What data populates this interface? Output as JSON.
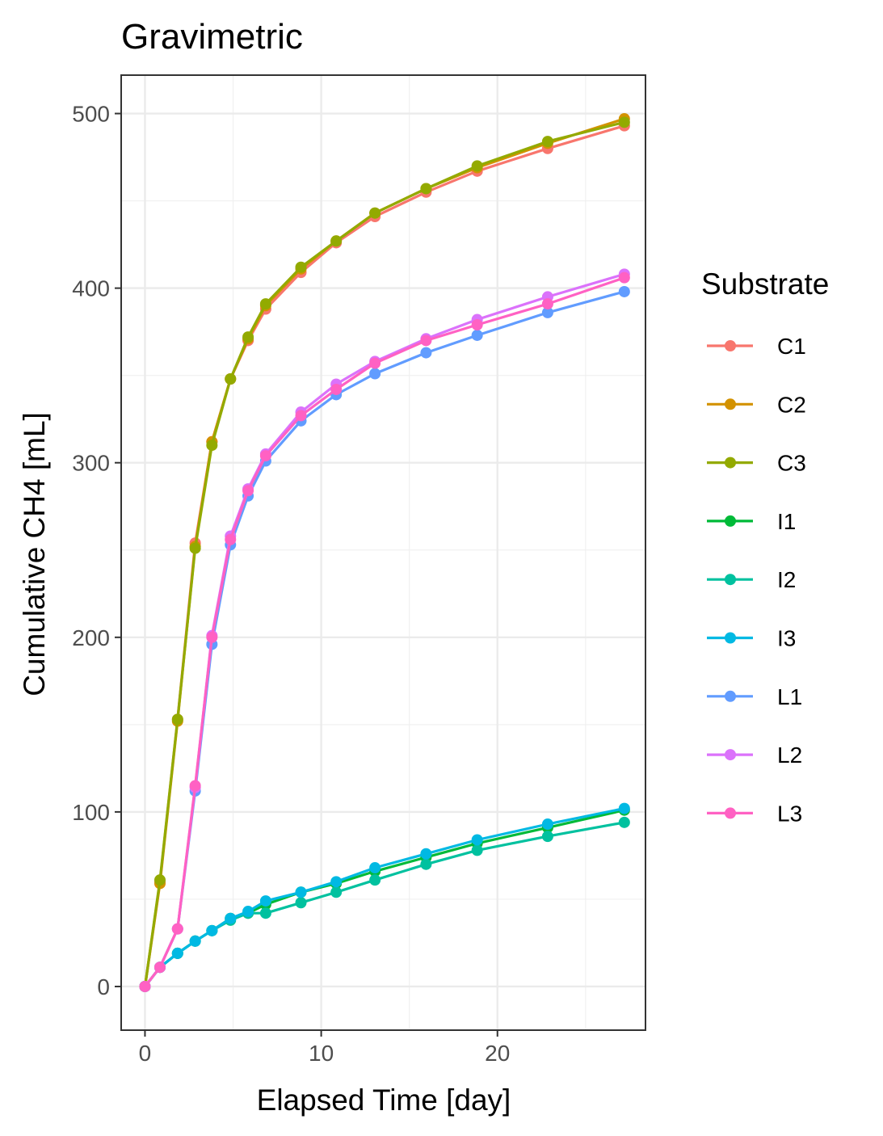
{
  "chart_data": {
    "type": "line",
    "title": "Gravimetric",
    "xlabel": "Elapsed Time [day]",
    "ylabel": "Cumulative CH4 [mL]",
    "xlim": [
      -1.35,
      28.4
    ],
    "ylim": [
      -25,
      522
    ],
    "x_ticks": [
      0,
      10,
      20
    ],
    "y_ticks": [
      0,
      100,
      200,
      300,
      400,
      500
    ],
    "x_minor_ticks": [
      5,
      15,
      25
    ],
    "y_minor_ticks": [
      50,
      150,
      250,
      350,
      450
    ],
    "grid": true,
    "legend": {
      "title": "Substrate",
      "position": "right"
    },
    "x": [
      0,
      0.85,
      1.85,
      2.85,
      3.8,
      4.85,
      5.85,
      6.85,
      8.85,
      10.85,
      13.05,
      15.95,
      18.85,
      22.85,
      27.2
    ],
    "series": [
      {
        "name": "C1",
        "color": "#F8766D",
        "values": [
          0,
          60,
          153,
          254,
          312,
          348,
          370,
          388,
          409,
          426,
          441,
          455,
          467,
          480,
          493
        ]
      },
      {
        "name": "C2",
        "color": "#D39200",
        "values": [
          0,
          59,
          152,
          252,
          312,
          348,
          371,
          390,
          411,
          427,
          443,
          457,
          469,
          483,
          497
        ]
      },
      {
        "name": "C3",
        "color": "#93AA00",
        "values": [
          0,
          61,
          153,
          251,
          310,
          348,
          372,
          391,
          412,
          427,
          443,
          457,
          470,
          484,
          495
        ]
      },
      {
        "name": "I1",
        "color": "#00BA38",
        "values": [
          0,
          11,
          19,
          26,
          32,
          39,
          42,
          47,
          54,
          59,
          66,
          74,
          82,
          91,
          101
        ]
      },
      {
        "name": "I2",
        "color": "#00C19F",
        "values": [
          0,
          11,
          19,
          26,
          32,
          38,
          42,
          42,
          48,
          54,
          61,
          70,
          78,
          86,
          94
        ]
      },
      {
        "name": "I3",
        "color": "#00B9E3",
        "values": [
          0,
          11,
          19,
          26,
          32,
          39,
          43,
          49,
          54,
          60,
          68,
          76,
          84,
          93,
          102
        ]
      },
      {
        "name": "L1",
        "color": "#619CFF",
        "values": [
          0,
          11,
          33,
          112,
          196,
          253,
          281,
          301,
          324,
          339,
          351,
          363,
          373,
          386,
          398
        ]
      },
      {
        "name": "L2",
        "color": "#DB72FB",
        "values": [
          0,
          11,
          33,
          114,
          201,
          258,
          285,
          305,
          329,
          345,
          358,
          371,
          382,
          395,
          408
        ]
      },
      {
        "name": "L3",
        "color": "#FF61C3",
        "values": [
          0,
          11,
          33,
          115,
          200,
          256,
          284,
          304,
          327,
          342,
          357,
          370,
          379,
          391,
          406
        ]
      }
    ]
  }
}
